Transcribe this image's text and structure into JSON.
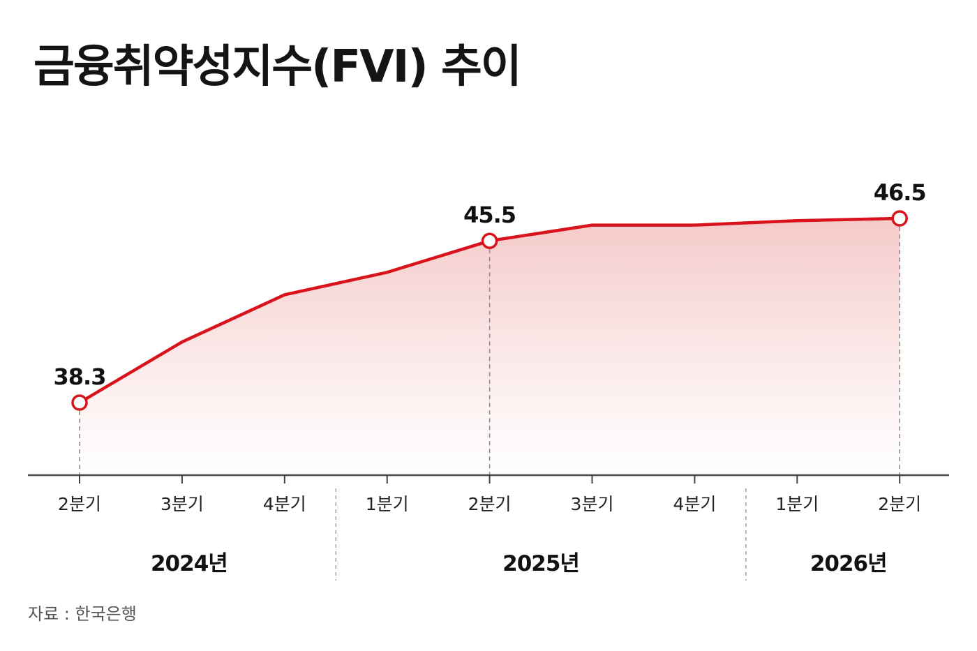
{
  "header": {
    "title": "금융취약성지수(FVI) 추이"
  },
  "footer": {
    "source": "자료 : 한국은행"
  },
  "colors": {
    "line": "#d8131b",
    "fill_top": "#f2b7b7",
    "fill_bottom": "#ffffff",
    "axis": "#444444",
    "guide": "#888888"
  },
  "chart_data": {
    "type": "area",
    "title": "금융취약성지수(FVI) 추이",
    "xlabel": "",
    "ylabel": "",
    "grid": false,
    "categories": [
      "2분기",
      "3분기",
      "4분기",
      "1분기",
      "2분기",
      "3분기",
      "4분기",
      "1분기",
      "2분기"
    ],
    "groups": [
      {
        "label": "2024년",
        "start": 0,
        "end": 2
      },
      {
        "label": "2025년",
        "start": 3,
        "end": 6
      },
      {
        "label": "2026년",
        "start": 7,
        "end": 8
      }
    ],
    "series": [
      {
        "values": [
          38.3,
          41.0,
          43.1,
          44.1,
          45.5,
          46.2,
          46.2,
          46.4,
          46.5
        ]
      }
    ],
    "labeled_points": [
      {
        "index": 0,
        "label": "38.3"
      },
      {
        "index": 4,
        "label": "45.5"
      },
      {
        "index": 8,
        "label": "46.5"
      }
    ],
    "ylim": [
      28,
      49
    ]
  }
}
